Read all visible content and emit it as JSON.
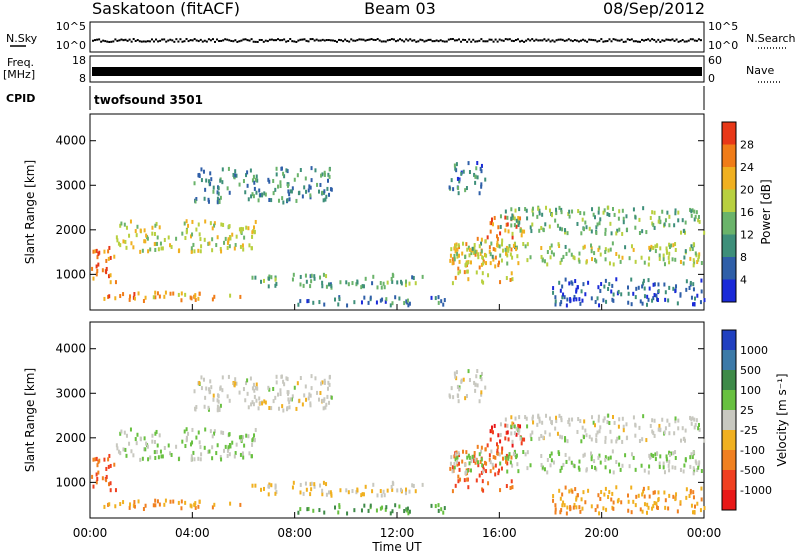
{
  "header": {
    "station": "Saskatoon (fitACF)",
    "beam": "Beam 03",
    "date": "08/Sep/2012"
  },
  "chart_data": [
    {
      "type": "line",
      "panel": "noise",
      "left_label": "N.Sky",
      "right_label": "N.Search",
      "left_ticks": [
        "10^5",
        "10^0"
      ],
      "right_ticks": [
        "10^5",
        "10^0"
      ],
      "scale": "log"
    },
    {
      "type": "line",
      "panel": "freq-nave",
      "left_label_top": "Freq.",
      "left_label_bottom": "[MHz]",
      "right_label": "Nave",
      "left_ticks": [
        18,
        8
      ],
      "right_ticks": [
        60,
        0
      ],
      "freq_value_mhz": 11
    },
    {
      "type": "table",
      "panel": "cpid",
      "label": "CPID",
      "value": "twofsound 3501"
    },
    {
      "type": "heatmap",
      "panel": "power",
      "ylabel": "Slant Range [km]",
      "ylim": [
        200,
        4600
      ],
      "yticks": [
        1000,
        2000,
        3000,
        4000
      ],
      "colorbar_label": "Power [dB]",
      "colorbar_ticks": [
        4,
        8,
        12,
        16,
        20,
        24,
        28
      ],
      "colors": [
        "#1a2ad8",
        "#2f5fa8",
        "#3e8f7a",
        "#6ab36a",
        "#b8d040",
        "#f0b020",
        "#f07c18",
        "#e83818"
      ]
    },
    {
      "type": "heatmap",
      "panel": "velocity",
      "ylabel": "Slant Range [km]",
      "ylim": [
        200,
        4600
      ],
      "yticks": [
        1000,
        2000,
        3000,
        4000
      ],
      "colorbar_label": "Velocity [m s⁻¹]",
      "colorbar_ticks": [
        1000,
        500,
        100,
        25,
        -25,
        -100,
        -500,
        -1000
      ],
      "colors": [
        "#2040c0",
        "#3c7aa8",
        "#3e8a48",
        "#68c040",
        "#c8c8c0",
        "#f0b020",
        "#f08020",
        "#f04020",
        "#e81818"
      ]
    }
  ],
  "x_axis": {
    "label": "Time UT",
    "ticks": [
      "00:00",
      "04:00",
      "08:00",
      "12:00",
      "16:00",
      "20:00",
      "00:00"
    ]
  },
  "scatter_regions": [
    {
      "t": [
        0,
        6
      ],
      "r": [
        400,
        600
      ],
      "pv": 24,
      "vel": -100
    },
    {
      "t": [
        0,
        1
      ],
      "r": [
        800,
        1600
      ],
      "pv": 26,
      "vel": -500
    },
    {
      "t": [
        1,
        6.5
      ],
      "r": [
        1500,
        2200
      ],
      "pv": 18,
      "vel": 25
    },
    {
      "t": [
        4,
        9.5
      ],
      "r": [
        2600,
        3400
      ],
      "pv": 10,
      "vel": 0
    },
    {
      "t": [
        6,
        13
      ],
      "r": [
        700,
        1000
      ],
      "pv": 12,
      "vel": -25
    },
    {
      "t": [
        8,
        14
      ],
      "r": [
        300,
        500
      ],
      "pv": 8,
      "vel": 100
    },
    {
      "t": [
        14,
        16.5
      ],
      "r": [
        800,
        1800
      ],
      "pv": 22,
      "vel": -500
    },
    {
      "t": [
        15.5,
        17
      ],
      "r": [
        1800,
        2300
      ],
      "pv": 26,
      "vel": -1000
    },
    {
      "t": [
        14,
        24
      ],
      "r": [
        1200,
        1700
      ],
      "pv": 16,
      "vel": 25
    },
    {
      "t": [
        16,
        24
      ],
      "r": [
        1900,
        2500
      ],
      "pv": 14,
      "vel": 0
    },
    {
      "t": [
        18,
        24
      ],
      "r": [
        300,
        900
      ],
      "pv": 6,
      "vel": -100
    },
    {
      "t": [
        14,
        15.5
      ],
      "r": [
        2800,
        3500
      ],
      "pv": 8,
      "vel": 0
    }
  ]
}
